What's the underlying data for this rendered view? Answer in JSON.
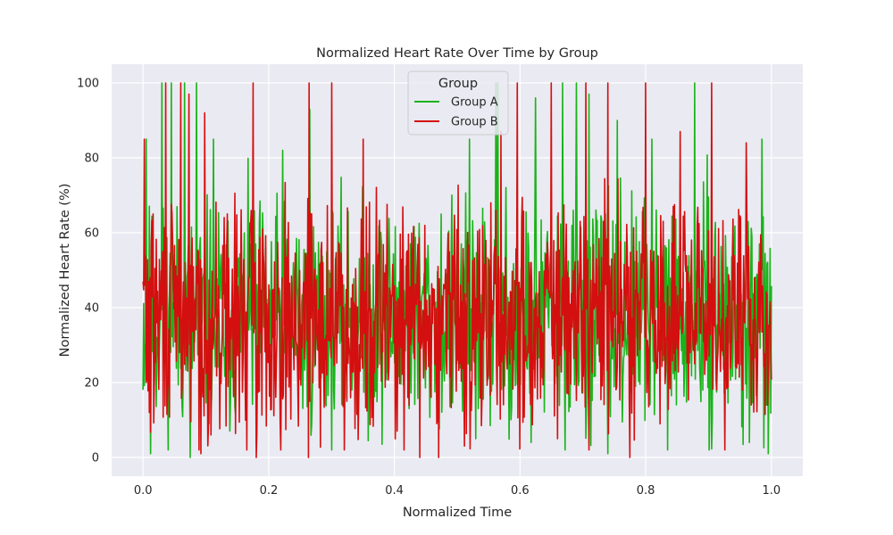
{
  "chart_data": {
    "type": "line",
    "title": "Normalized Heart Rate Over Time by Group",
    "xlabel": "Normalized Time",
    "ylabel": "Normalized Heart Rate (%)",
    "xlim": [
      -0.05,
      1.05
    ],
    "ylim": [
      -5,
      105
    ],
    "xticks": [
      0.0,
      0.2,
      0.4,
      0.6,
      0.8,
      1.0
    ],
    "xtick_labels": [
      "0.0",
      "0.2",
      "0.4",
      "0.6",
      "0.8",
      "1.0"
    ],
    "yticks": [
      0,
      20,
      40,
      60,
      80,
      100
    ],
    "ytick_labels": [
      "0",
      "20",
      "40",
      "60",
      "80",
      "100"
    ],
    "grid": true,
    "legend": {
      "title": "Group",
      "placement": "top-center"
    },
    "series_samples": 1000,
    "series": [
      {
        "name": "Group A",
        "color": "#1ab31a",
        "seed": 11,
        "peaks": [
          [
            0.005,
            85
          ],
          [
            0.012,
            100
          ],
          [
            0.03,
            100
          ],
          [
            0.045,
            100
          ],
          [
            0.066,
            100
          ],
          [
            0.085,
            100
          ],
          [
            0.112,
            85
          ],
          [
            0.18,
            85
          ],
          [
            0.222,
            82
          ],
          [
            0.265,
            93
          ],
          [
            0.52,
            85
          ],
          [
            0.562,
            100
          ],
          [
            0.565,
            100
          ],
          [
            0.625,
            96
          ],
          [
            0.668,
            100
          ],
          [
            0.69,
            100
          ],
          [
            0.71,
            97
          ],
          [
            0.755,
            90
          ],
          [
            0.81,
            85
          ],
          [
            0.878,
            100
          ],
          [
            0.985,
            85
          ]
        ],
        "dips": [
          [
            0.012,
            1
          ],
          [
            0.075,
            0
          ],
          [
            0.18,
            3
          ],
          [
            0.53,
            5
          ],
          [
            0.618,
            4
          ],
          [
            0.74,
            1
          ],
          [
            0.965,
            4
          ],
          [
            0.995,
            1
          ]
        ]
      },
      {
        "name": "Group B",
        "color": "#d40f0f",
        "seed": 29,
        "peaks": [
          [
            0.002,
            85
          ],
          [
            0.036,
            100
          ],
          [
            0.06,
            100
          ],
          [
            0.073,
            97
          ],
          [
            0.098,
            92
          ],
          [
            0.175,
            100
          ],
          [
            0.264,
            100
          ],
          [
            0.3,
            100
          ],
          [
            0.35,
            85
          ],
          [
            0.57,
            87
          ],
          [
            0.596,
            100
          ],
          [
            0.65,
            100
          ],
          [
            0.705,
            100
          ],
          [
            0.74,
            100
          ],
          [
            0.8,
            100
          ],
          [
            0.855,
            87
          ],
          [
            0.905,
            100
          ],
          [
            0.96,
            84
          ]
        ],
        "dips": [
          [
            0.0098,
            12
          ],
          [
            0.092,
            1
          ],
          [
            0.108,
            6
          ],
          [
            0.18,
            0
          ],
          [
            0.263,
            0
          ],
          [
            0.415,
            2
          ],
          [
            0.44,
            0
          ],
          [
            0.47,
            0
          ],
          [
            0.66,
            5
          ],
          [
            0.775,
            0
          ]
        ]
      }
    ]
  }
}
